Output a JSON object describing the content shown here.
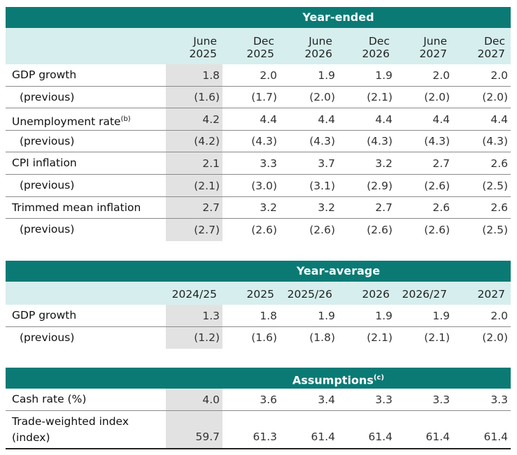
{
  "sections": [
    {
      "title": "Year-ended",
      "columns": [
        "June\n2025",
        "Dec\n2025",
        "June\n2026",
        "Dec\n2026",
        "June\n2027",
        "Dec\n2027"
      ],
      "rows": [
        {
          "label": "GDP growth",
          "values": [
            "1.8",
            "2.0",
            "1.9",
            "1.9",
            "2.0",
            "2.0"
          ]
        },
        {
          "label": "(previous)",
          "values": [
            "(1.6)",
            "(1.7)",
            "(2.0)",
            "(2.1)",
            "(2.0)",
            "(2.0)"
          ]
        },
        {
          "label": "Unemployment rate",
          "note": "(b)",
          "values": [
            "4.2",
            "4.4",
            "4.4",
            "4.4",
            "4.4",
            "4.4"
          ]
        },
        {
          "label": "(previous)",
          "values": [
            "(4.2)",
            "(4.3)",
            "(4.3)",
            "(4.3)",
            "(4.3)",
            "(4.3)"
          ]
        },
        {
          "label": "CPI inflation",
          "values": [
            "2.1",
            "3.3",
            "3.7",
            "3.2",
            "2.7",
            "2.6"
          ]
        },
        {
          "label": "(previous)",
          "values": [
            "(2.1)",
            "(3.0)",
            "(3.1)",
            "(2.9)",
            "(2.6)",
            "(2.5)"
          ]
        },
        {
          "label": "Trimmed mean inflation",
          "values": [
            "2.7",
            "3.2",
            "3.2",
            "2.7",
            "2.6",
            "2.6"
          ]
        },
        {
          "label": "(previous)",
          "values": [
            "(2.7)",
            "(2.6)",
            "(2.6)",
            "(2.6)",
            "(2.6)",
            "(2.5)"
          ]
        }
      ]
    },
    {
      "title": "Year-average",
      "columns": [
        "2024/25",
        "2025",
        "2025/26",
        "2026",
        "2026/27",
        "2027"
      ],
      "rows": [
        {
          "label": "GDP growth",
          "values": [
            "1.3",
            "1.8",
            "1.9",
            "1.9",
            "1.9",
            "2.0"
          ]
        },
        {
          "label": "(previous)",
          "values": [
            "(1.2)",
            "(1.6)",
            "(1.8)",
            "(2.1)",
            "(2.1)",
            "(2.0)"
          ]
        }
      ]
    },
    {
      "title": "Assumptions",
      "note": "(c)",
      "rows": [
        {
          "label": "Cash rate (%)",
          "values": [
            "4.0",
            "3.6",
            "3.4",
            "3.3",
            "3.3",
            "3.3"
          ]
        },
        {
          "label": "Trade-weighted index\n(index)",
          "values": [
            "59.7",
            "61.3",
            "61.4",
            "61.4",
            "61.4",
            "61.4"
          ]
        }
      ]
    }
  ]
}
